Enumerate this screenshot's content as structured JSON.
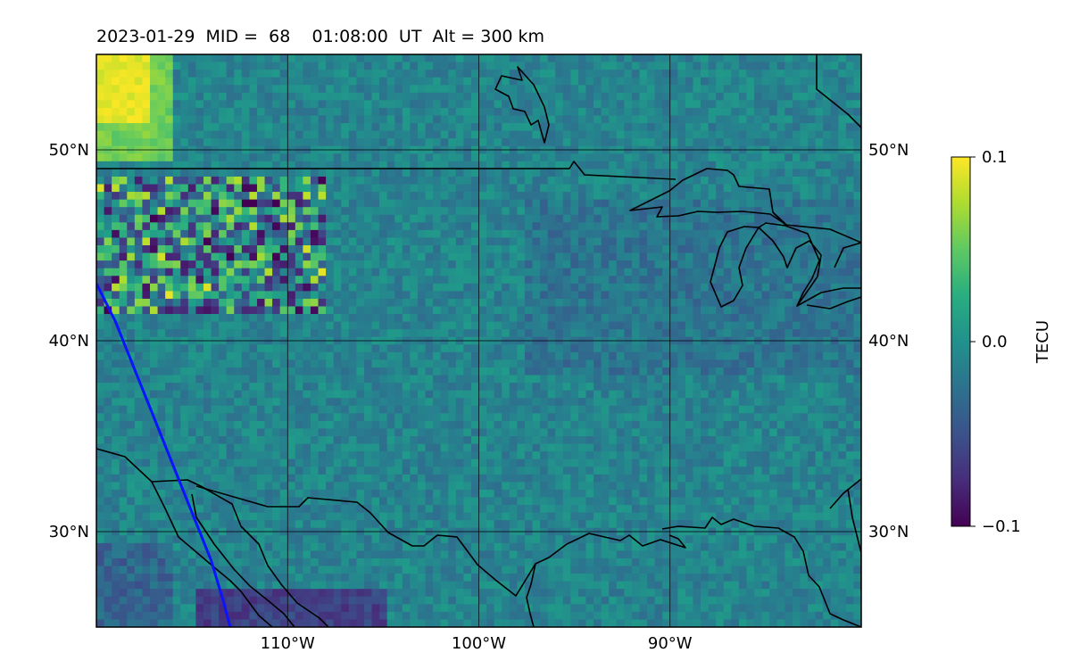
{
  "title": "2023-01-29  MID =  68    01:08:00  UT  Alt = 300 km",
  "map": {
    "lon_range": [
      -120,
      -80
    ],
    "lat_range": [
      25,
      55
    ],
    "lon_ticks": [
      {
        "value": -110,
        "label": "110°W"
      },
      {
        "value": -100,
        "label": "100°W"
      },
      {
        "value": -90,
        "label": "90°W"
      }
    ],
    "lat_ticks": [
      {
        "value": 50,
        "label": "50°N"
      },
      {
        "value": 40,
        "label": "40°N"
      },
      {
        "value": 30,
        "label": "30°N"
      }
    ],
    "colormap": "viridis",
    "features": [
      "coastlines",
      "country-borders",
      "great-lakes"
    ],
    "track_color": "#0a14ff",
    "track": [
      [
        -120,
        43
      ],
      [
        -119,
        41
      ],
      [
        -118,
        38.5
      ],
      [
        -117,
        36
      ],
      [
        -116,
        33.5
      ],
      [
        -115,
        31
      ],
      [
        -114,
        28.5
      ],
      [
        -113.4,
        26.5
      ],
      [
        -113,
        25
      ]
    ]
  },
  "colorbar": {
    "label": "TECU",
    "min": -0.1,
    "max": 0.1,
    "ticks": [
      {
        "value": 0.1,
        "label": "0.1"
      },
      {
        "value": 0.0,
        "label": "0.0"
      },
      {
        "value": -0.1,
        "label": "−0.1"
      }
    ]
  }
}
